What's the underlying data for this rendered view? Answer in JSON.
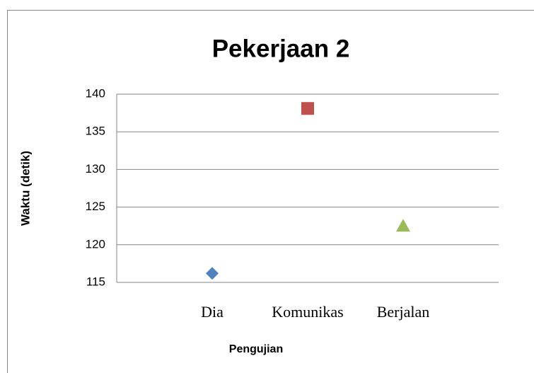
{
  "chart_data": {
    "type": "scatter",
    "title": "Pekerjaan 2",
    "categories": [
      "Dia",
      "Komunikas",
      "Berjalan"
    ],
    "values": [
      116.2,
      138.1,
      122.5
    ],
    "colors": [
      "#4f81bd",
      "#c0504d",
      "#9bbb59"
    ],
    "markers": [
      "diamond",
      "square",
      "triangle"
    ],
    "x_label": "Pengujian",
    "y_label": "Waktu (detik)",
    "ylim": [
      115,
      140
    ],
    "yticks": [
      115,
      120,
      125,
      130,
      135,
      140
    ],
    "grid": true
  }
}
